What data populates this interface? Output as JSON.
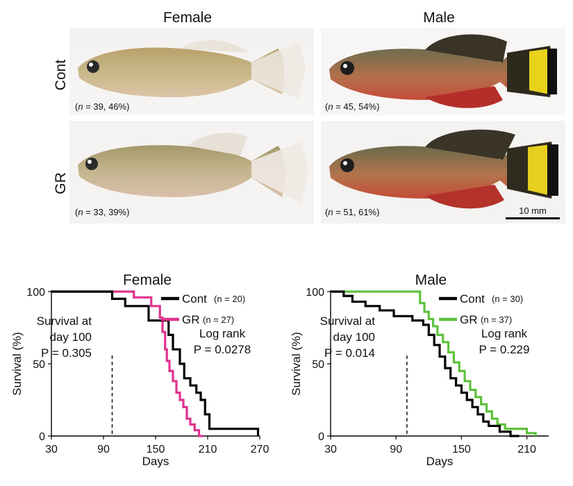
{
  "figure": {
    "photos": {
      "col_titles": [
        "Female",
        "Male"
      ],
      "row_labels": [
        "Cont",
        "GR"
      ],
      "captions": {
        "female_cont_n": "39",
        "female_cont_pct": ", 46%)",
        "male_cont_n": "45",
        "male_cont_pct": ", 54%)",
        "female_gr_n": "33",
        "female_gr_pct": ", 39%)",
        "male_gr_n": "51",
        "male_gr_pct": ", 61%)"
      },
      "scale_bar": "10 mm"
    }
  },
  "chart_data": [
    {
      "type": "line",
      "step": true,
      "title": "Female",
      "xlabel": "Days",
      "ylabel": "Survival (%)",
      "xlim": [
        30,
        270
      ],
      "ylim": [
        0,
        100
      ],
      "xticks": [
        30,
        90,
        150,
        210,
        270
      ],
      "yticks": [
        0,
        50,
        100
      ],
      "series": [
        {
          "name": "Cont",
          "n_label": "(n = 20)",
          "color": "#000000",
          "x": [
            30,
            100,
            115,
            142,
            165,
            170,
            178,
            183,
            190,
            197,
            202,
            207,
            212,
            268
          ],
          "y": [
            100,
            95,
            90,
            80,
            70,
            60,
            50,
            40,
            35,
            30,
            25,
            15,
            5,
            0
          ]
        },
        {
          "name": "GR",
          "n_label": "(n = 27)",
          "color": "#e0338e",
          "x": [
            30,
            95,
            125,
            145,
            155,
            158,
            161,
            163,
            166,
            170,
            174,
            178,
            182,
            186,
            190,
            195,
            200,
            205
          ],
          "y": [
            100,
            100,
            96,
            90,
            82,
            72,
            60,
            52,
            45,
            38,
            30,
            25,
            20,
            12,
            8,
            4,
            0,
            0
          ]
        }
      ],
      "annotations": [
        {
          "text_lines": [
            "Survival at",
            "day 100",
            "P = 0.305"
          ],
          "x_ref": 100
        },
        {
          "text_lines": [
            "Log rank",
            "P = 0.0278"
          ]
        }
      ]
    },
    {
      "type": "line",
      "step": true,
      "title": "Male",
      "xlabel": "Days",
      "ylabel": "Survival (%)",
      "xlim": [
        30,
        230
      ],
      "ylim": [
        0,
        100
      ],
      "xticks": [
        30,
        90,
        150,
        210
      ],
      "yticks": [
        0,
        50,
        100
      ],
      "series": [
        {
          "name": "Cont",
          "n_label": "(n = 30)",
          "color": "#000000",
          "x": [
            30,
            42,
            50,
            62,
            75,
            88,
            105,
            115,
            120,
            125,
            130,
            135,
            140,
            145,
            150,
            155,
            160,
            165,
            170,
            175,
            185,
            195,
            203
          ],
          "y": [
            100,
            97,
            93,
            90,
            87,
            83,
            80,
            77,
            70,
            63,
            55,
            47,
            40,
            35,
            30,
            25,
            20,
            15,
            10,
            7,
            3,
            0,
            0
          ]
        },
        {
          "name": "GR",
          "n_label": "(n = 37)",
          "color": "#5ec23c",
          "x": [
            30,
            108,
            112,
            116,
            120,
            124,
            128,
            133,
            138,
            143,
            148,
            153,
            158,
            163,
            168,
            173,
            178,
            183,
            190,
            210,
            218
          ],
          "y": [
            100,
            100,
            92,
            86,
            81,
            76,
            70,
            65,
            58,
            51,
            45,
            38,
            32,
            27,
            22,
            17,
            12,
            8,
            5,
            2,
            0
          ]
        }
      ],
      "annotations": [
        {
          "text_lines": [
            "Survival at",
            "day 100",
            "P = 0.014"
          ],
          "x_ref": 100
        },
        {
          "text_lines": [
            "Log rank",
            "P = 0.229"
          ]
        }
      ]
    }
  ]
}
